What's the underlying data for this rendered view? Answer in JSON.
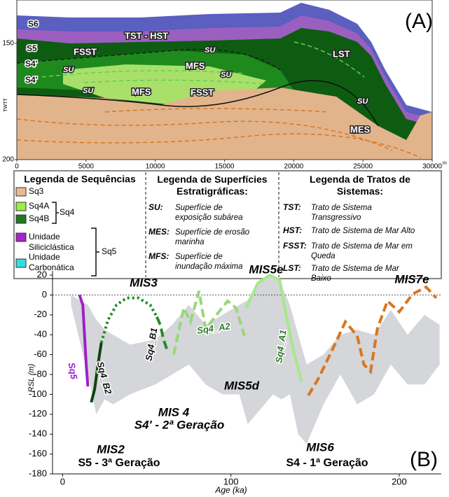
{
  "panel_a": {
    "label": "(A)",
    "y_axis_label": "TWTT",
    "yticks": [
      150,
      200
    ],
    "xticks": [
      0,
      5000,
      10000,
      15000,
      20000,
      25000,
      30000
    ],
    "x_unit": "m",
    "surfaces": [
      "S6",
      "S5",
      "S4'",
      "S4'"
    ],
    "annotations": [
      "TST - HST",
      "FSST",
      "LST",
      "FSST",
      "MFS",
      "MFS",
      "SU",
      "SU",
      "SU",
      "SU",
      "SU",
      "MES"
    ]
  },
  "legends": [
    {
      "title": "Legenda de Sequências",
      "items": [
        "Sq3",
        "Sq4A",
        "Sq4B",
        "Unidade Siliciclástica",
        "Unidade Carbonática"
      ],
      "groups": [
        "Sq4",
        "Sq5"
      ]
    },
    {
      "title": "Legenda de Superfícies Estratigráficas:",
      "items": [
        {
          "key": "SU:",
          "text": "Superfície de exposição subárea"
        },
        {
          "key": "MES:",
          "text": "Superfície de erosão marinha"
        },
        {
          "key": "MFS:",
          "text": "Superfície de inundação máxima"
        }
      ]
    },
    {
      "title": "Legenda de Tratos de Sistemas:",
      "items": [
        {
          "key": "TST:",
          "text": "Trato de Sistema Transgressivo"
        },
        {
          "key": "HST:",
          "text": "Trato de Sistema de Mar Alto"
        },
        {
          "key": "FSST:",
          "text": "Trato de Sistema de Mar em Queda"
        },
        {
          "key": "LST:",
          "text": "Trato de Sistema de Mar Baixo"
        }
      ]
    }
  ],
  "chart_data": {
    "type": "line",
    "label": "(B)",
    "x_label": "Age (ka)",
    "y_label": "RSL (m)",
    "xlim": [
      -6,
      225
    ],
    "ylim": [
      -180,
      20
    ],
    "xticks": [
      0,
      100,
      200
    ],
    "yticks": [
      20,
      0,
      -20,
      -40,
      -60,
      -80,
      -100,
      -120,
      -140,
      -160,
      -180
    ],
    "reference_line": 0,
    "band": {
      "color": "#d4d6d9",
      "x": [
        5,
        15,
        20,
        25,
        30,
        40,
        55,
        65,
        75,
        85,
        95,
        105,
        110,
        115,
        120,
        125,
        130,
        135,
        140,
        145,
        155,
        165,
        175,
        185,
        195,
        205,
        215,
        224
      ],
      "upper": [
        0,
        -10,
        -25,
        -35,
        -40,
        -50,
        -45,
        -30,
        -10,
        -30,
        -20,
        -10,
        -5,
        10,
        18,
        20,
        10,
        -10,
        -40,
        -70,
        -60,
        -40,
        -35,
        -40,
        -15,
        -40,
        -20,
        -30
      ],
      "lower": [
        -10,
        -80,
        -120,
        -105,
        -110,
        -100,
        -90,
        -80,
        -70,
        -90,
        -100,
        -100,
        -130,
        -120,
        -110,
        -100,
        -105,
        -100,
        -140,
        -150,
        -110,
        -80,
        -110,
        -100,
        -70,
        -90,
        -90,
        -70
      ]
    },
    "series": [
      {
        "name": "Sq5",
        "color": "#a020c8",
        "dash": "solid",
        "x": [
          10,
          12,
          13,
          14,
          15
        ],
        "values": [
          0,
          -10,
          -40,
          -70,
          -92
        ]
      },
      {
        "name": "Sq4_B2",
        "color": "#114411",
        "dash": "solid",
        "x": [
          17,
          19,
          21,
          23
        ],
        "values": [
          -108,
          -95,
          -70,
          -48
        ]
      },
      {
        "color": "#1e8a1e",
        "dash": "dotted",
        "x": [
          23,
          27,
          32,
          38,
          45,
          52,
          56
        ],
        "values": [
          -48,
          -25,
          -10,
          -3,
          -3,
          -10,
          -22
        ]
      },
      {
        "name": "Sq4_B1",
        "color": "#2a8a2a",
        "dash": "dashed",
        "x": [
          56,
          58,
          60,
          62
        ],
        "values": [
          -22,
          -30,
          -45,
          -55
        ]
      },
      {
        "name": "Sq4_A2",
        "color": "#9ad77a",
        "dash": "dashed",
        "x": [
          66,
          72,
          76,
          81,
          85,
          91,
          98,
          103,
          108
        ],
        "values": [
          -60,
          -13,
          -27,
          4,
          -34,
          -21,
          -6,
          -13,
          -41
        ]
      },
      {
        "name": "Sq4_A1",
        "color": "#a6e88a",
        "dash": "solid",
        "x": [
          109,
          116,
          123,
          129,
          132,
          137,
          142
        ],
        "values": [
          -13,
          12,
          20,
          15,
          -13,
          -55,
          -87
        ]
      },
      {
        "color": "#d9761e",
        "dash": "dashed",
        "x": [
          146,
          152,
          160,
          168,
          175,
          179,
          183,
          187,
          193,
          200,
          208,
          216,
          222
        ],
        "values": [
          -101,
          -84,
          -56,
          -27,
          -41,
          -70,
          -77,
          -34,
          -6,
          -17,
          1,
          8,
          -3
        ]
      }
    ],
    "annotations": [
      "MIS3",
      "MIS5e",
      "MIS7e",
      "MIS 4",
      "S4' - 2ª Geração",
      "MIS5d",
      "MIS2",
      "S5 - 3ª Geração",
      "MIS6",
      "S4 - 1ª Geração"
    ]
  }
}
